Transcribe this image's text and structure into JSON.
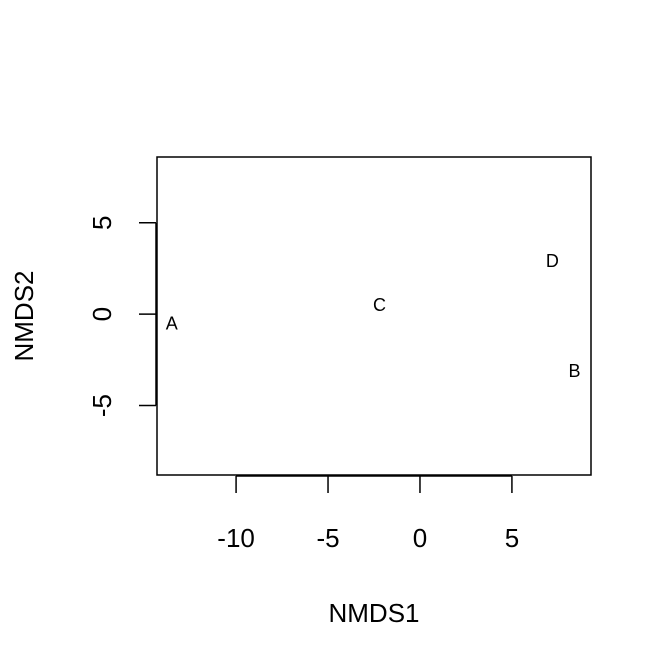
{
  "chart_data": {
    "type": "scatter",
    "title": "",
    "xlabel": "NMDS1",
    "ylabel": "NMDS2",
    "xlim": [
      -14.3,
      9.3
    ],
    "ylim": [
      -8.8,
      8.6
    ],
    "xticks": [
      -10,
      -5,
      0,
      5
    ],
    "yticks": [
      -5,
      0,
      5
    ],
    "grid": false,
    "marker": "text-label",
    "points": [
      {
        "label": "A",
        "x": -13.5,
        "y": -0.5
      },
      {
        "label": "B",
        "x": 8.4,
        "y": -3.1
      },
      {
        "label": "C",
        "x": -2.2,
        "y": 0.5
      },
      {
        "label": "D",
        "x": 7.2,
        "y": 2.9
      }
    ],
    "colors": {
      "axis": "#000000",
      "text": "#000000",
      "background": "#ffffff"
    }
  }
}
